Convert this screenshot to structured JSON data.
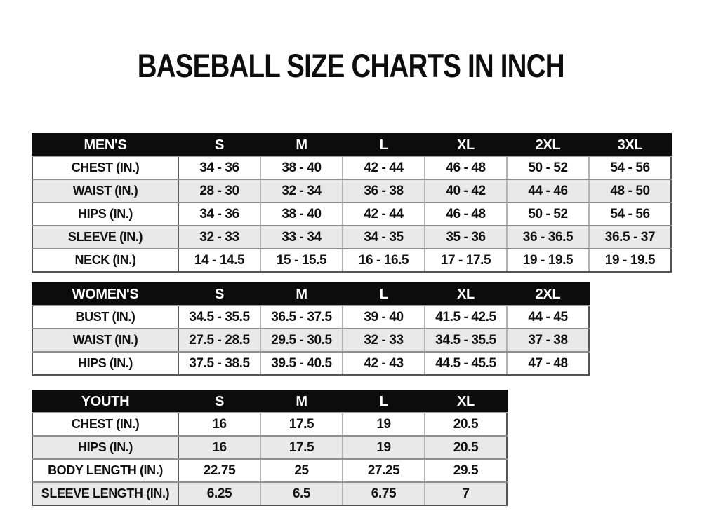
{
  "page": {
    "title": "BASEBALL SIZE CHARTS IN INCH"
  },
  "colors": {
    "background": "#ffffff",
    "header_bg": "#0c0c0c",
    "header_text": "#ffffff",
    "row_white": "#ffffff",
    "row_alt": "#e9e9e9",
    "border_outer": "#555555",
    "border_inner": "#8f8f8f",
    "text": "#111111"
  },
  "chart_data": {
    "type": "table",
    "title": "BASEBALL SIZE CHARTS IN INCH",
    "tables": [
      {
        "name": "mens",
        "header": [
          "MEN'S",
          "S",
          "M",
          "L",
          "XL",
          "2XL",
          "3XL"
        ],
        "rows": [
          [
            "CHEST (IN.)",
            "34 - 36",
            "38 - 40",
            "42 - 44",
            "46 - 48",
            "50 - 52",
            "54 - 56"
          ],
          [
            "WAIST (IN.)",
            "28 - 30",
            "32 - 34",
            "36 - 38",
            "40 - 42",
            "44 - 46",
            "48 - 50"
          ],
          [
            "HIPS (IN.)",
            "34 - 36",
            "38 - 40",
            "42 - 44",
            "46 - 48",
            "50 - 52",
            "54 - 56"
          ],
          [
            "SLEEVE (IN.)",
            "32 - 33",
            "33 - 34",
            "34 - 35",
            "35 - 36",
            "36 - 36.5",
            "36.5 - 37"
          ],
          [
            "NECK (IN.)",
            "14 - 14.5",
            "15 - 15.5",
            "16 - 16.5",
            "17 - 17.5",
            "19 - 19.5",
            "19 - 19.5"
          ]
        ]
      },
      {
        "name": "womens",
        "header": [
          "WOMEN'S",
          "S",
          "M",
          "L",
          "XL",
          "2XL"
        ],
        "rows": [
          [
            "BUST (IN.)",
            "34.5 - 35.5",
            "36.5 - 37.5",
            "39 - 40",
            "41.5 - 42.5",
            "44 - 45"
          ],
          [
            "WAIST (IN.)",
            "27.5 - 28.5",
            "29.5 - 30.5",
            "32 - 33",
            "34.5 - 35.5",
            "37 - 38"
          ],
          [
            "HIPS (IN.)",
            "37.5 - 38.5",
            "39.5 - 40.5",
            "42 - 43",
            "44.5 - 45.5",
            "47 - 48"
          ]
        ]
      },
      {
        "name": "youth",
        "header": [
          "YOUTH",
          "S",
          "M",
          "L",
          "XL"
        ],
        "rows": [
          [
            "CHEST (IN.)",
            "16",
            "17.5",
            "19",
            "20.5"
          ],
          [
            "HIPS (IN.)",
            "16",
            "17.5",
            "19",
            "20.5"
          ],
          [
            "BODY LENGTH (IN.)",
            "22.75",
            "25",
            "27.25",
            "29.5"
          ],
          [
            "SLEEVE LENGTH (IN.)",
            "6.25",
            "6.5",
            "6.75",
            "7"
          ]
        ]
      }
    ],
    "layout": {
      "label_col_width": 208,
      "size_col_width": 117
    }
  }
}
